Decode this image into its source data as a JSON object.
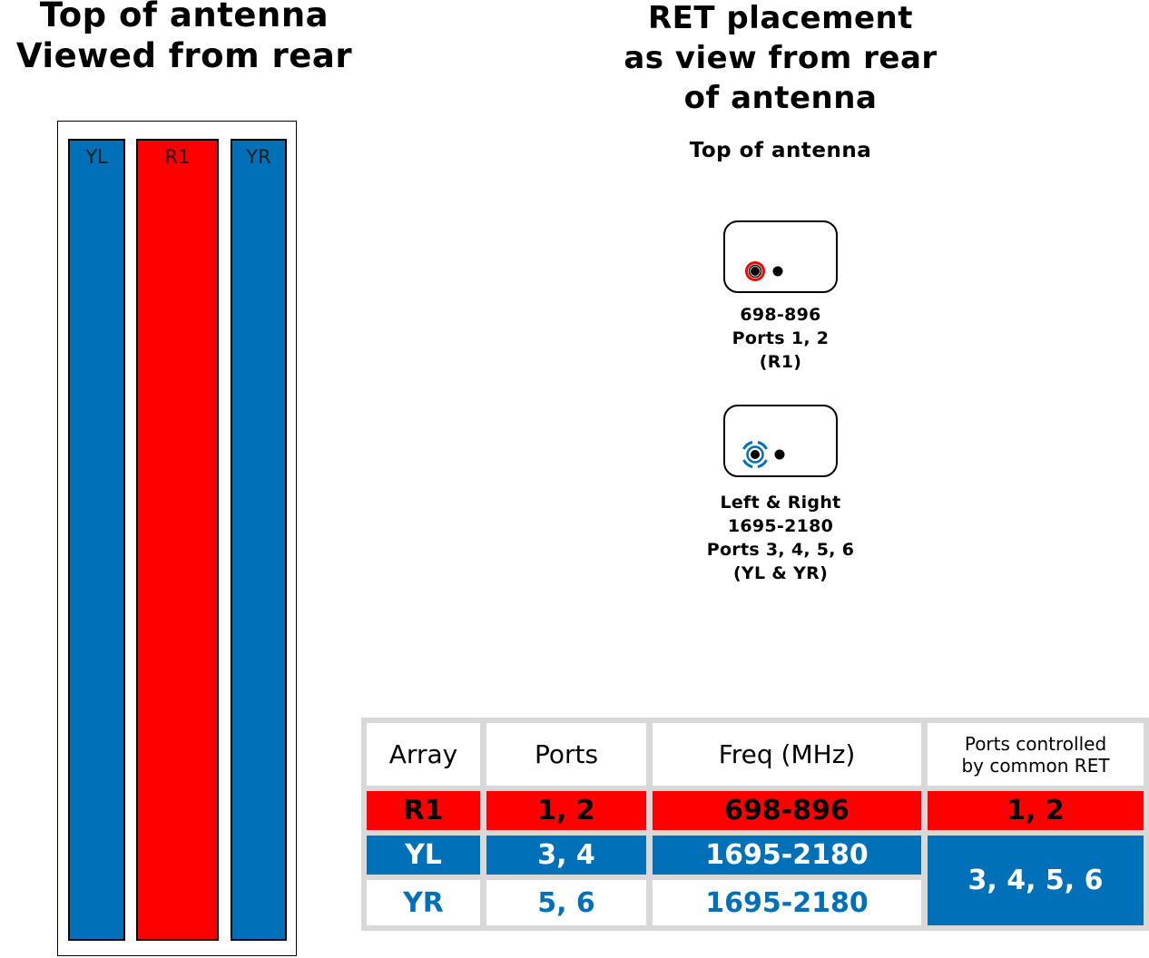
{
  "left_title": {
    "line1": "Top of antenna",
    "line2": "Viewed from rear"
  },
  "right_title": {
    "line1": "RET placement",
    "line2": "as view from rear",
    "line3": "of antenna"
  },
  "ret_top_label": "Top of antenna",
  "antenna_arrays": [
    {
      "label": "YL",
      "color": "#0070b8"
    },
    {
      "label": "R1",
      "color": "#ff0000"
    },
    {
      "label": "YR",
      "color": "#0070b8"
    }
  ],
  "ret_units": [
    {
      "icon": "red-ret-connector-icon",
      "color": "#ff0000",
      "lines": [
        "698-896",
        "Ports 1, 2",
        "(R1)"
      ]
    },
    {
      "icon": "blue-ret-connector-icon",
      "color": "#0070b8",
      "lines": [
        "Left & Right",
        "1695-2180",
        "Ports 3, 4, 5, 6",
        "(YL & YR)"
      ]
    }
  ],
  "table": {
    "headers": {
      "array": "Array",
      "ports": "Ports",
      "freq": "Freq (MHz)",
      "ret_line1": "Ports controlled",
      "ret_line2": "by common RET"
    },
    "rows": [
      {
        "array": "R1",
        "ports": "1, 2",
        "freq": "698-896",
        "ret": "1, 2"
      },
      {
        "array": "YL",
        "ports": "3, 4",
        "freq": "1695-2180"
      },
      {
        "array": "YR",
        "ports": "5, 6",
        "freq": "1695-2180"
      }
    ],
    "merged_ret": "3, 4, 5, 6"
  }
}
